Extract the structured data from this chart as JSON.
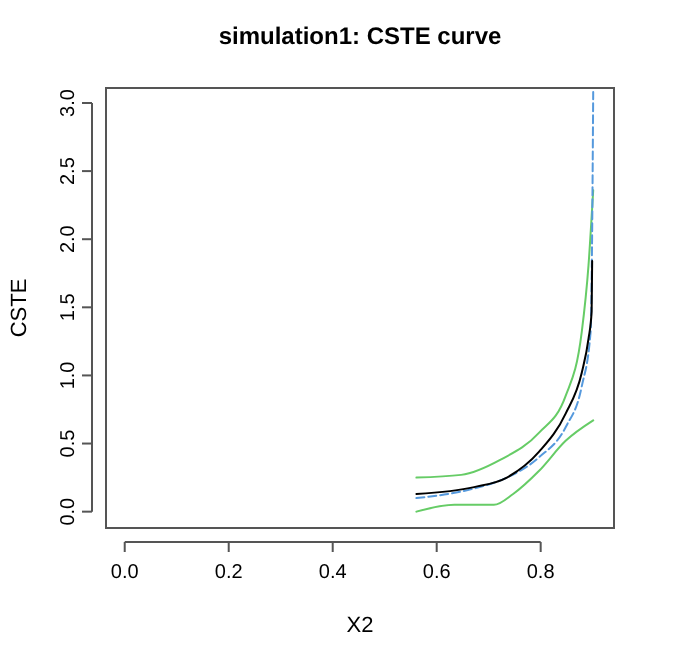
{
  "chart_data": {
    "type": "line",
    "title": "simulation1: CSTE curve",
    "xlabel": "X2",
    "ylabel": "CSTE",
    "xlim": [
      -0.036,
      0.941
    ],
    "ylim": [
      -0.12,
      3.11
    ],
    "xticks": [
      {
        "value": 0,
        "label": "0.0"
      },
      {
        "value": 0.2,
        "label": "0.2"
      },
      {
        "value": 0.4,
        "label": "0.4"
      },
      {
        "value": 0.6,
        "label": "0.6"
      },
      {
        "value": 0.8,
        "label": "0.8"
      }
    ],
    "yticks": [
      {
        "value": 0,
        "label": "0.0"
      },
      0.5,
      {
        "value": 1,
        "label": "1.0"
      },
      1.5,
      {
        "value": 2,
        "label": "2.0"
      },
      2.5,
      {
        "value": 3,
        "label": "3.0"
      }
    ],
    "series": [
      {
        "color": "#66cc66",
        "line_style": "solid",
        "x": [
          0.561,
          0.647,
          0.722,
          0.797,
          0.848,
          0.879,
          0.892,
          0.901
        ],
        "values": [
          0.25,
          0.27,
          0.38,
          0.58,
          0.85,
          1.32,
          1.81,
          2.36
        ]
      },
      {
        "color": "#66cc66",
        "line_style": "solid",
        "x": [
          0.561,
          0.634,
          0.71,
          0.747,
          0.797,
          0.848,
          0.901
        ],
        "values": [
          0.0,
          0.05,
          0.05,
          0.13,
          0.3,
          0.52,
          0.67
        ]
      },
      {
        "color": "#5599dd",
        "line_style": "dashed",
        "x": [
          0.561,
          0.672,
          0.735,
          0.797,
          0.848,
          0.879,
          0.896,
          0.899,
          0.901
        ],
        "values": [
          0.1,
          0.17,
          0.25,
          0.4,
          0.62,
          0.92,
          1.32,
          2.06,
          3.08
        ]
      },
      {
        "color": "#000000",
        "line_style": "solid",
        "x": [
          0.561,
          0.672,
          0.735,
          0.797,
          0.848,
          0.879,
          0.892,
          0.898,
          0.899
        ],
        "values": [
          0.13,
          0.18,
          0.25,
          0.44,
          0.72,
          1.02,
          1.27,
          1.47,
          1.84
        ]
      }
    ]
  }
}
